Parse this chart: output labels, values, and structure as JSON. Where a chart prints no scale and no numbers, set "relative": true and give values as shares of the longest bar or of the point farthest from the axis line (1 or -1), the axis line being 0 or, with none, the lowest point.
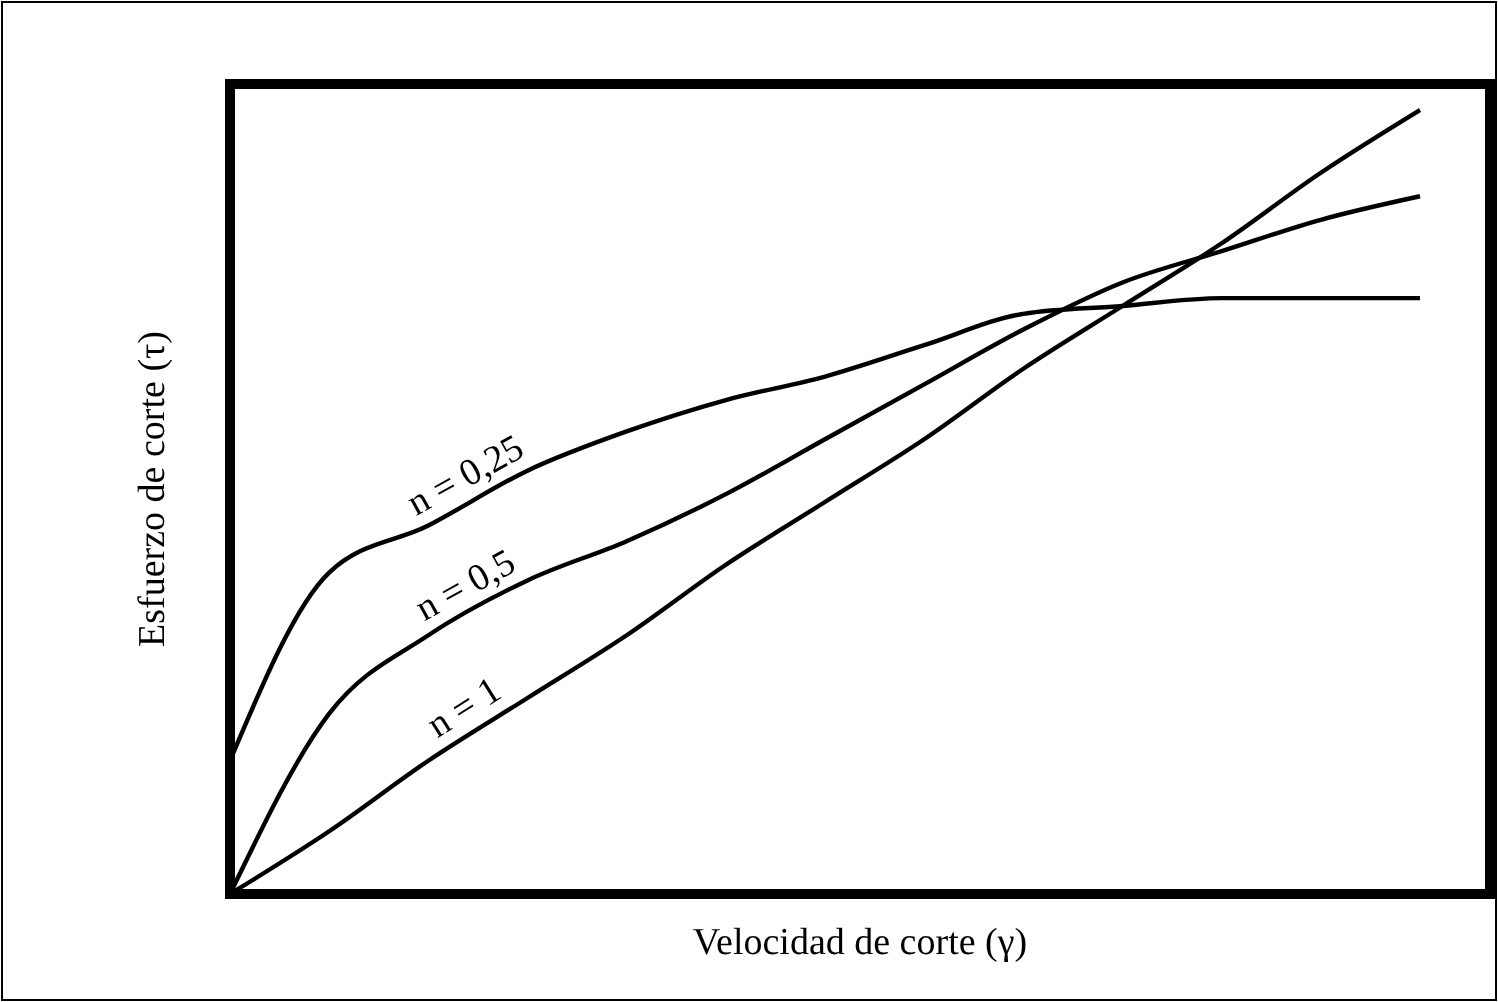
{
  "chart_data": {
    "type": "line",
    "relative": true,
    "xlabel": "Velocidad de corte (γ)",
    "ylabel": "Esfuerzo de corte (τ)",
    "categories": [
      null,
      null,
      null,
      null,
      null,
      null,
      null,
      null,
      null,
      null,
      null,
      null,
      null
    ],
    "series": [
      {
        "name": "n = 0,25",
        "color": "#000000",
        "values": [
          0.17,
          0.41,
          0.47,
          0.54,
          0.59,
          0.63,
          0.66,
          0.7,
          0.74,
          0.75,
          0.76,
          0.76,
          0.76
        ]
      },
      {
        "name": "n = 0,5",
        "color": "#000000",
        "values": [
          0,
          0.23,
          0.33,
          0.4,
          0.45,
          0.51,
          0.58,
          0.65,
          0.72,
          0.78,
          0.82,
          0.86,
          0.89
        ]
      },
      {
        "name": "n = 1",
        "color": "#000000",
        "values": [
          0,
          0.08,
          0.17,
          0.25,
          0.33,
          0.42,
          0.5,
          0.58,
          0.67,
          0.75,
          0.83,
          0.92,
          1
        ]
      }
    ]
  }
}
